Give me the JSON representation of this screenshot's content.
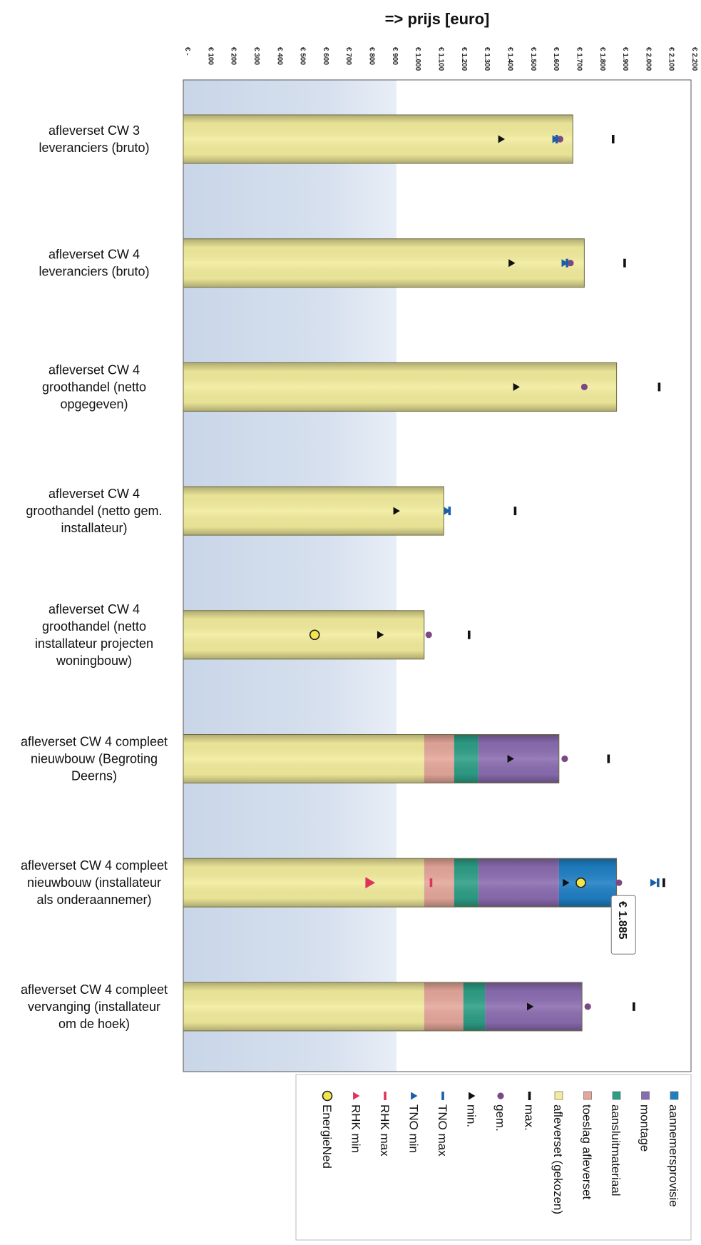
{
  "chart_data": {
    "type": "bar",
    "orientation": "horizontal-stacked",
    "xlabel": "=> prijs [euro]",
    "xlim": [
      0,
      2200
    ],
    "x_ticks": [
      0,
      100,
      200,
      300,
      400,
      500,
      600,
      700,
      800,
      900,
      1000,
      1100,
      1200,
      1300,
      1400,
      1500,
      1600,
      1700,
      1800,
      1900,
      2000,
      2100,
      2200
    ],
    "x_tick_labels": [
      "€ -",
      "€ 100",
      "€ 200",
      "€ 300",
      "€ 400",
      "€ 500",
      "€ 600",
      "€ 700",
      "€ 800",
      "€ 900",
      "€ 1.000",
      "€ 1.100",
      "€ 1.200",
      "€ 1.300",
      "€ 1.400",
      "€ 1.500",
      "€ 1.600",
      "€ 1.700",
      "€ 1.800",
      "€ 1.900",
      "€ 2.000",
      "€ 2.100",
      "€ 2.200"
    ],
    "categories": [
      [
        "afleverset CW 3",
        "leveranciers (bruto)"
      ],
      [
        "afleverset CW 4",
        "leveranciers (bruto)"
      ],
      [
        "afleverset CW 4",
        "groothandel (netto",
        "opgegeven)"
      ],
      [
        "afleverset CW 4",
        "groothandel (netto gem.",
        "installateur)"
      ],
      [
        "afleverset CW 4",
        "groothandel (netto",
        "installateur projecten",
        "woningbouw)"
      ],
      [
        "afleverset CW 4 compleet",
        "nieuwbouw (Begroting",
        "Deerns)"
      ],
      [
        "afleverset CW 4 compleet",
        "nieuwbouw (installateur",
        "als onderaannemer)"
      ],
      [
        "afleverset CW 4 compleet",
        "vervanging (installateur",
        "om de hoek)"
      ]
    ],
    "series": [
      {
        "name": "afleverset (gekozen)",
        "color": "#f2ec9c",
        "values": [
          1690,
          1740,
          1880,
          1130,
          1045,
          1045,
          1045,
          1045
        ]
      },
      {
        "name": "toeslag afleverset",
        "color": "#e5a79b",
        "values": [
          0,
          0,
          0,
          0,
          0,
          130,
          130,
          170
        ]
      },
      {
        "name": "aansluitmateriaal",
        "color": "#2e9e86",
        "values": [
          0,
          0,
          0,
          0,
          0,
          105,
          105,
          95
        ]
      },
      {
        "name": "montage",
        "color": "#8a6cb0",
        "values": [
          0,
          0,
          0,
          0,
          0,
          350,
          350,
          420
        ]
      },
      {
        "name": "aannemersprovisie",
        "color": "#1f7fc4",
        "values": [
          0,
          0,
          0,
          0,
          0,
          0,
          250,
          0
        ]
      }
    ],
    "markers": [
      {
        "name": "max.",
        "symbol": "dash",
        "color": "#111111",
        "values": [
          1865,
          1915,
          2065,
          1440,
          1240,
          1845,
          2085,
          1955
        ]
      },
      {
        "name": "gem.",
        "symbol": "dot",
        "color": "#7b4a84",
        "values": [
          1635,
          1680,
          1740,
          null,
          1065,
          1655,
          1890,
          1755
        ]
      },
      {
        "name": "min.",
        "symbol": "triangle",
        "color": "#111111",
        "values": [
          1380,
          1425,
          1445,
          925,
          855,
          1420,
          1660,
          1505
        ]
      },
      {
        "name": "TNO max",
        "symbol": "dash",
        "color": "#1a5fa8",
        "values": [
          1620,
          1665,
          null,
          1155,
          null,
          null,
          2060,
          null
        ]
      },
      {
        "name": "TNO min",
        "symbol": "triangle",
        "color": "#1a5fa8",
        "values": [
          1615,
          1655,
          null,
          1145,
          null,
          null,
          2040,
          null
        ]
      },
      {
        "name": "RHK max",
        "symbol": "dash",
        "color": "#e0335a",
        "values": [
          null,
          null,
          null,
          null,
          null,
          null,
          1075,
          null
        ]
      },
      {
        "name": "RHK min",
        "symbol": "triangle",
        "color": "#e0335a",
        "values": [
          null,
          null,
          null,
          null,
          null,
          null,
          810,
          null
        ]
      },
      {
        "name": "EnergieNed",
        "symbol": "circle",
        "color": "#f3e64a",
        "values": [
          null,
          null,
          null,
          null,
          570,
          null,
          1725,
          null
        ]
      }
    ],
    "annotations": [
      {
        "category_index": 6,
        "value": 1885,
        "text": "€ 1.885"
      }
    ],
    "legend_order": [
      "aannemersprovisie",
      "montage",
      "aansluitmateriaal",
      "toeslag afleverset",
      "afleverset (gekozen)",
      "max.",
      "gem.",
      "min.",
      "TNO max",
      "TNO min",
      "RHK max",
      "RHK min",
      "EnergieNed"
    ],
    "legend_position": "bottom",
    "grid": false
  }
}
